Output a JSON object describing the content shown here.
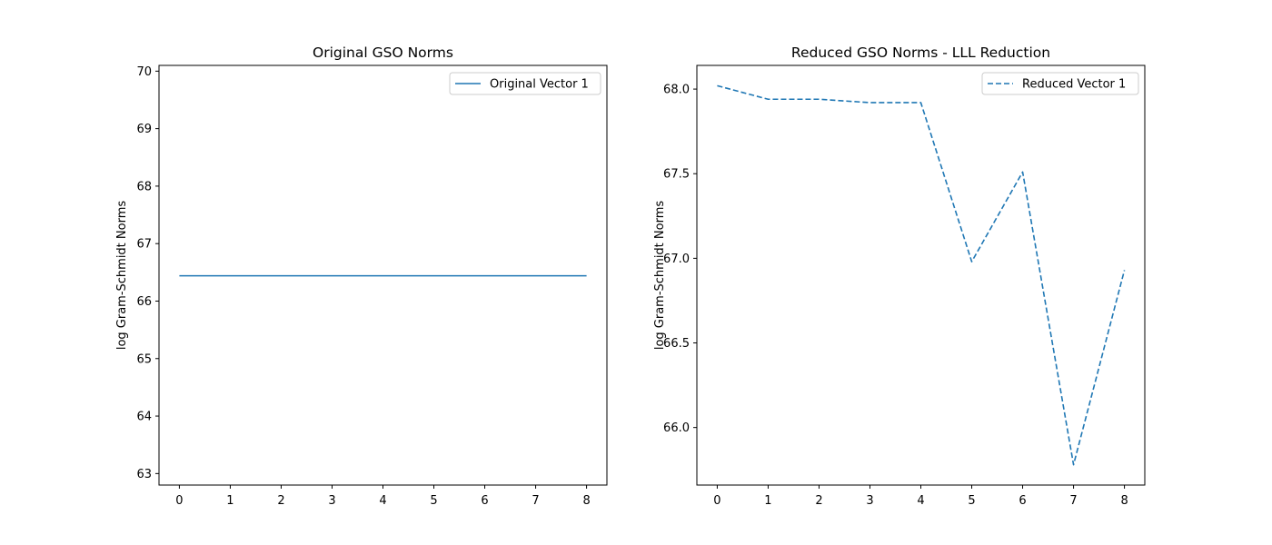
{
  "chart_data": [
    {
      "type": "line",
      "title": "Original GSO Norms",
      "xlabel": "",
      "ylabel": "log Gram-Schmidt Norms",
      "xlim": [
        -0.4,
        8.4
      ],
      "ylim": [
        62.8,
        70.1
      ],
      "xticks": [
        0,
        1,
        2,
        3,
        4,
        5,
        6,
        7,
        8
      ],
      "yticks": [
        63,
        64,
        65,
        66,
        67,
        68,
        69,
        70
      ],
      "ytick_labels": [
        "63",
        "64",
        "65",
        "66",
        "67",
        "68",
        "69",
        "70"
      ],
      "grid": false,
      "legend": "upper right",
      "series": [
        {
          "name": "Original Vector 1",
          "style": "solid",
          "color": "#1f77b4",
          "x": [
            0,
            1,
            2,
            3,
            4,
            5,
            6,
            7,
            8
          ],
          "y": [
            66.44,
            66.44,
            66.44,
            66.44,
            66.44,
            66.44,
            66.44,
            66.44,
            66.44
          ]
        }
      ]
    },
    {
      "type": "line",
      "title": "Reduced GSO Norms - LLL Reduction",
      "xlabel": "",
      "ylabel": "log Gram-Schmidt Norms",
      "xlim": [
        -0.4,
        8.4
      ],
      "ylim": [
        65.66,
        68.14
      ],
      "xticks": [
        0,
        1,
        2,
        3,
        4,
        5,
        6,
        7,
        8
      ],
      "yticks": [
        66.0,
        66.5,
        67.0,
        67.5,
        68.0
      ],
      "ytick_labels": [
        "66.0",
        "66.5",
        "67.0",
        "67.5",
        "68.0"
      ],
      "grid": false,
      "legend": "upper right",
      "series": [
        {
          "name": "Reduced Vector 1",
          "style": "dashed",
          "color": "#1f77b4",
          "x": [
            0,
            1,
            2,
            3,
            4,
            5,
            6,
            7,
            8
          ],
          "y": [
            68.02,
            67.94,
            67.94,
            67.92,
            67.92,
            66.98,
            67.51,
            65.78,
            66.93
          ]
        }
      ]
    }
  ]
}
